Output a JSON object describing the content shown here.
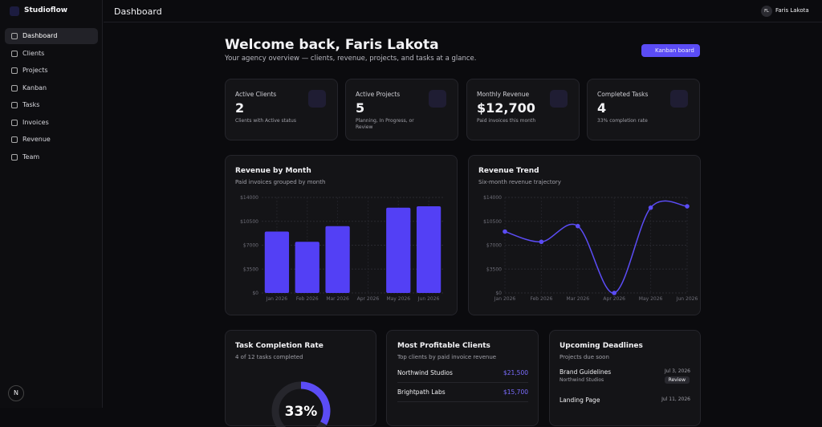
{
  "brand": "Studioflow",
  "nav": [
    "Dashboard",
    "Clients",
    "Projects",
    "Kanban",
    "Tasks",
    "Invoices",
    "Revenue",
    "Team"
  ],
  "header": {
    "title": "Dashboard",
    "user_initials": "FL",
    "user_name": "Faris Lakota"
  },
  "welcome": {
    "title": "Welcome back, Faris Lakota",
    "subtitle": "Your agency overview — clients, revenue, projects, and tasks at a glance.",
    "button": "Kanban board"
  },
  "stats": [
    {
      "label": "Active Clients",
      "value": "2",
      "desc": "Clients with Active status"
    },
    {
      "label": "Active Projects",
      "value": "5",
      "desc": "Planning, In Progress, or Review"
    },
    {
      "label": "Monthly Revenue",
      "value": "$12,700",
      "desc": "Paid invoices this month"
    },
    {
      "label": "Completed Tasks",
      "value": "4",
      "desc": "33% completion rate"
    }
  ],
  "revenue_by_month": {
    "type": "bar",
    "title": "Revenue by Month",
    "subtitle": "Paid invoices grouped by month",
    "color": "#5340f5",
    "categories": [
      "Jan 2026",
      "Feb 2026",
      "Mar 2026",
      "Apr 2026",
      "May 2026",
      "Jun 2026"
    ],
    "values": [
      9000,
      7500,
      9800,
      0,
      12500,
      12700
    ],
    "ylim": [
      0,
      14000
    ],
    "yticks": [
      {
        "value": 0,
        "label": "$0"
      },
      {
        "value": 3500,
        "label": "$3500"
      },
      {
        "value": 7000,
        "label": "$7000"
      },
      {
        "value": 10500,
        "label": "$10500"
      },
      {
        "value": 14000,
        "label": "$14000"
      }
    ],
    "grid": true
  },
  "revenue_trend": {
    "type": "line",
    "title": "Revenue Trend",
    "subtitle": "Six-month revenue trajectory",
    "color": "#5b4cf5",
    "categories": [
      "Jan 2026",
      "Feb 2026",
      "Mar 2026",
      "Apr 2026",
      "May 2026",
      "Jun 2026"
    ],
    "values": [
      9000,
      7500,
      9800,
      0,
      12500,
      12700
    ],
    "ylim": [
      0,
      14000
    ],
    "yticks": [
      {
        "value": 0,
        "label": "$0"
      },
      {
        "value": 3500,
        "label": "$3500"
      },
      {
        "value": 7000,
        "label": "$7000"
      },
      {
        "value": 10500,
        "label": "$10500"
      },
      {
        "value": 14000,
        "label": "$14000"
      }
    ],
    "grid": true
  },
  "task_completion": {
    "type": "donut",
    "title": "Task Completion Rate",
    "subtitle": "4 of 12 tasks completed",
    "value": 33,
    "value_label": "33%",
    "color": "#5b4cf5"
  },
  "profitable_clients": {
    "title": "Most Profitable Clients",
    "subtitle": "Top clients by paid invoice revenue",
    "rows": [
      [
        "Northwind Studios",
        "$21,500"
      ],
      [
        "Brightpath Labs",
        "$15,700"
      ]
    ]
  },
  "deadlines": {
    "title": "Upcoming Deadlines",
    "subtitle": "Projects due soon",
    "rows": [
      {
        "name": "Brand Guidelines",
        "client": "Northwind Studios",
        "date": "Jul 3, 2026",
        "status": "Review"
      },
      {
        "name": "Landing Page",
        "date": "Jul 11, 2026"
      }
    ]
  }
}
